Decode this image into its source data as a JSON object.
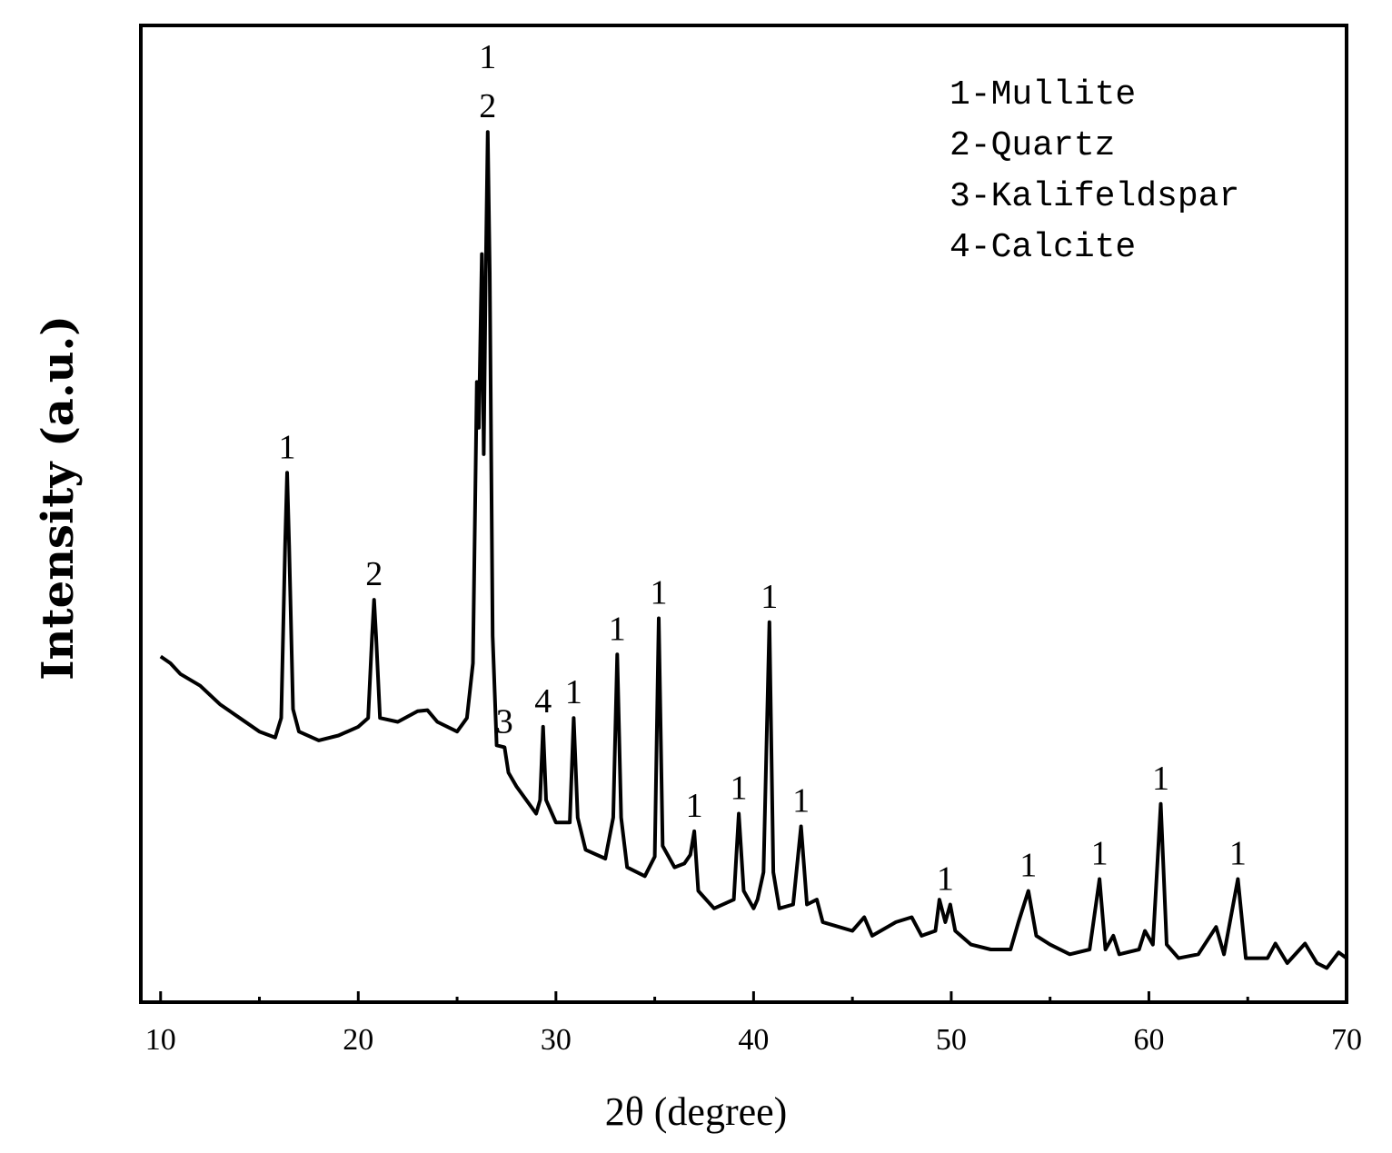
{
  "chart_data": {
    "type": "line",
    "xlabel": "2θ (degree)",
    "ylabel": "Intensity (a.u.)",
    "xlim": [
      9,
      70
    ],
    "ylim": [
      0,
      100
    ],
    "xticks": [
      10,
      20,
      30,
      40,
      50,
      60,
      70
    ],
    "xminorticks": [
      15,
      25,
      35,
      45,
      55,
      65
    ],
    "legend_text": [
      "1-Mullite",
      "2-Quartz",
      "3-Kalifeldspar",
      "4-Calcite"
    ],
    "series": [
      {
        "color": "#000000",
        "x": [
          10.0,
          10.5,
          11,
          12,
          13,
          14,
          15,
          15.8,
          16.1,
          16.3,
          16.4,
          16.5,
          16.7,
          17,
          18,
          19,
          20,
          20.5,
          20.7,
          20.8,
          20.9,
          21.1,
          22,
          23,
          23.5,
          24,
          25,
          25.5,
          25.8,
          26.0,
          26.1,
          26.25,
          26.35,
          26.45,
          26.55,
          26.65,
          26.8,
          27.0,
          27.4,
          27.6,
          28,
          29,
          29.2,
          29.35,
          29.5,
          30,
          30.7,
          30.9,
          31.1,
          31.5,
          32.5,
          32.9,
          33.1,
          33.3,
          33.6,
          34.5,
          35.0,
          35.2,
          35.4,
          36,
          36.5,
          36.8,
          37.0,
          37.2,
          38,
          39.0,
          39.25,
          39.5,
          40,
          40.2,
          40.5,
          40.8,
          41.0,
          41.3,
          42,
          42.4,
          42.7,
          43.2,
          43.5,
          45,
          45.6,
          46,
          47.2,
          48,
          48.5,
          49.2,
          49.4,
          49.7,
          49.95,
          50.2,
          51,
          52,
          53,
          53.4,
          53.9,
          54.3,
          55,
          56,
          57,
          57.5,
          57.8,
          58.2,
          58.5,
          59.5,
          59.8,
          60.2,
          60.6,
          60.9,
          61.5,
          62.5,
          63.4,
          63.8,
          64.5,
          64.9,
          66,
          66.4,
          67,
          67.9,
          68.5,
          69,
          69.6,
          70
        ],
        "values": [
          35.4,
          34.7,
          33.6,
          32.4,
          30.5,
          29.1,
          27.7,
          27.1,
          29.1,
          46.8,
          54.2,
          46.8,
          30.0,
          27.7,
          26.8,
          27.3,
          28.2,
          29.1,
          37.5,
          41.2,
          37.5,
          29.1,
          28.7,
          29.8,
          29.9,
          28.7,
          27.7,
          29.1,
          34.7,
          63.5,
          58.8,
          76.6,
          56.1,
          74.7,
          89.1,
          74.7,
          37.5,
          26.3,
          26.1,
          23.5,
          22.1,
          19.3,
          20.7,
          28.2,
          20.7,
          18.4,
          18.4,
          29.1,
          18.9,
          15.6,
          14.7,
          18.9,
          35.6,
          18.9,
          13.8,
          12.9,
          14.9,
          39.3,
          16.0,
          13.8,
          14.2,
          15.1,
          17.5,
          11.4,
          9.6,
          10.5,
          19.3,
          11.4,
          9.6,
          10.5,
          13.3,
          38.9,
          13.3,
          9.6,
          10.0,
          18.0,
          10.0,
          10.5,
          8.2,
          7.3,
          8.7,
          6.8,
          8.2,
          8.7,
          6.8,
          7.3,
          10.5,
          8.2,
          10.0,
          7.3,
          5.9,
          5.4,
          5.4,
          8.2,
          11.4,
          6.8,
          5.9,
          4.9,
          5.4,
          12.6,
          5.4,
          6.8,
          4.9,
          5.4,
          7.3,
          5.9,
          20.3,
          5.9,
          4.5,
          4.9,
          7.7,
          4.9,
          12.6,
          4.5,
          4.5,
          6.0,
          4.0,
          6.0,
          4.0,
          3.5,
          5.1,
          4.5
        ]
      }
    ],
    "annotations": [
      {
        "text": "1",
        "x": 16.4
      },
      {
        "text": "2",
        "x": 20.8
      },
      {
        "text": "1",
        "x": 26.55
      },
      {
        "text": "2",
        "x": 26.55
      },
      {
        "text": "3",
        "x": 27.4
      },
      {
        "text": "4",
        "x": 29.35
      },
      {
        "text": "1",
        "x": 30.9
      },
      {
        "text": "1",
        "x": 33.1
      },
      {
        "text": "1",
        "x": 35.2
      },
      {
        "text": "1",
        "x": 37.0
      },
      {
        "text": "1",
        "x": 39.25
      },
      {
        "text": "1",
        "x": 40.8
      },
      {
        "text": "1",
        "x": 42.4
      },
      {
        "text": "1",
        "x": 49.7
      },
      {
        "text": "1",
        "x": 53.9
      },
      {
        "text": "1",
        "x": 57.5
      },
      {
        "text": "1",
        "x": 60.6
      },
      {
        "text": "1",
        "x": 64.5
      }
    ]
  }
}
